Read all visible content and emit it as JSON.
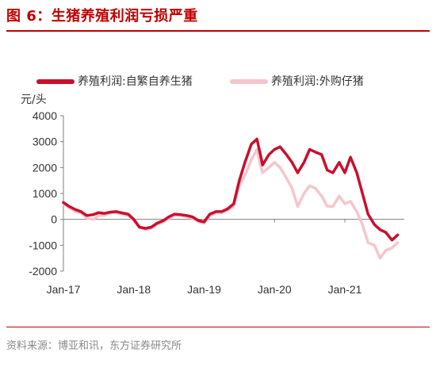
{
  "header": {
    "title": "图 6：生猪养殖利润亏损严重"
  },
  "footer": {
    "source": "资料来源：博亚和讯，东方证券研究所"
  },
  "chart_data": {
    "type": "line",
    "title": "图 6：生猪养殖利润亏损严重",
    "ylabel": "元/头",
    "xlabel": "",
    "ylim": [
      -2000,
      4000
    ],
    "yticks": [
      -2000,
      -1000,
      0,
      1000,
      2000,
      3000,
      4000
    ],
    "xtick_labels": [
      "Jan-17",
      "Jan-18",
      "Jan-19",
      "Jan-20",
      "Jan-21"
    ],
    "legend_position": "top",
    "grid": false,
    "x": [
      2017.0,
      2017.08,
      2017.17,
      2017.25,
      2017.33,
      2017.42,
      2017.5,
      2017.58,
      2017.67,
      2017.75,
      2017.83,
      2017.92,
      2018.0,
      2018.08,
      2018.17,
      2018.25,
      2018.33,
      2018.42,
      2018.5,
      2018.58,
      2018.67,
      2018.75,
      2018.83,
      2018.92,
      2019.0,
      2019.08,
      2019.17,
      2019.25,
      2019.33,
      2019.42,
      2019.5,
      2019.58,
      2019.67,
      2019.75,
      2019.8,
      2019.83,
      2019.92,
      2020.0,
      2020.08,
      2020.17,
      2020.25,
      2020.33,
      2020.42,
      2020.5,
      2020.58,
      2020.67,
      2020.75,
      2020.83,
      2020.92,
      2021.0,
      2021.08,
      2021.17,
      2021.25,
      2021.33,
      2021.42,
      2021.5,
      2021.58,
      2021.67,
      2021.75
    ],
    "series": [
      {
        "name": "养殖利润:自繁自养生猪",
        "color": "#c8102e",
        "values": [
          650,
          500,
          380,
          300,
          150,
          180,
          260,
          230,
          280,
          300,
          250,
          200,
          0,
          -300,
          -350,
          -300,
          -150,
          -50,
          100,
          200,
          180,
          150,
          100,
          -50,
          -100,
          200,
          300,
          300,
          400,
          600,
          1500,
          2200,
          2900,
          3100,
          2500,
          2100,
          2500,
          2700,
          2800,
          2500,
          2200,
          1800,
          2200,
          2700,
          2600,
          2500,
          1900,
          1800,
          2200,
          1800,
          2400,
          1800,
          1000,
          200,
          -200,
          -400,
          -500,
          -800,
          -600
        ]
      },
      {
        "name": "养殖利润:外购仔猪",
        "color": "#f4c6cc",
        "values": [
          600,
          450,
          300,
          250,
          50,
          0,
          150,
          150,
          250,
          250,
          200,
          150,
          -50,
          -300,
          -400,
          -350,
          -200,
          -100,
          50,
          150,
          150,
          100,
          50,
          -100,
          -150,
          150,
          250,
          250,
          350,
          500,
          1300,
          1700,
          2300,
          2700,
          2100,
          1800,
          2000,
          2200,
          2000,
          1600,
          1200,
          500,
          1000,
          1300,
          1200,
          900,
          500,
          500,
          900,
          600,
          700,
          300,
          -200,
          -900,
          -1000,
          -1500,
          -1200,
          -1100,
          -900
        ]
      }
    ]
  }
}
